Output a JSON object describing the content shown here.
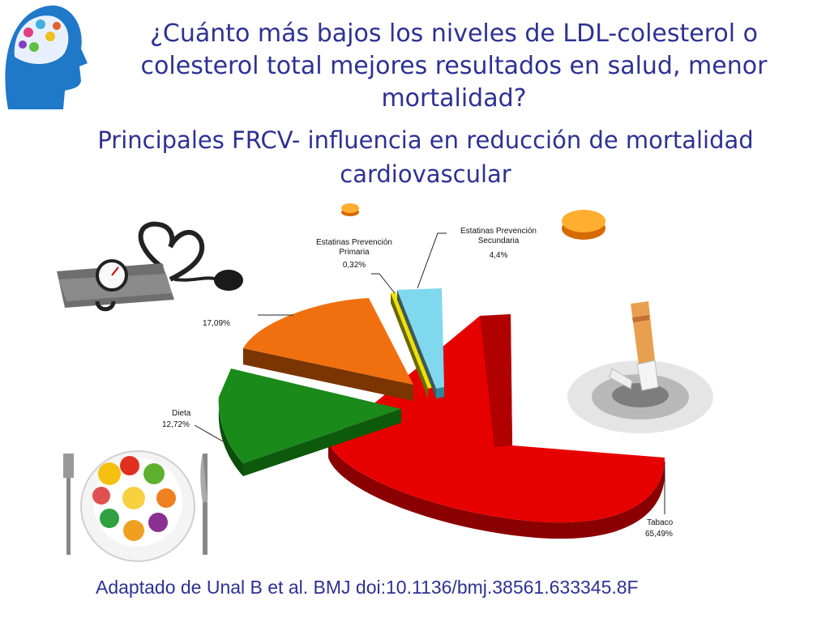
{
  "title": "¿Cuánto más bajos los niveles de LDL-colesterol o colesterol total mejores resultados en salud, menor mortalidad?",
  "subtitle": "Principales FRCV- influencia en reducción de mortalidad cardiovascular",
  "footer": "Adaptado de Unal B et al. BMJ doi:10.1136/bmj.38561.633345.8F",
  "colors": {
    "title": "#2e3192",
    "tabaco": "#e60000",
    "dieta": "#1a8a1a",
    "presion": "#f07010",
    "primaria": "#f0e000",
    "secundaria": "#7fd8ee"
  },
  "icons": [
    "brain-head-logo-icon",
    "blood-pressure-monitor-icon",
    "pill-icon",
    "cigarette-ashtray-icon",
    "fruit-plate-icon"
  ],
  "chart_data": {
    "type": "pie",
    "series": [
      {
        "label": "Tabaco",
        "value_label": "65,49%",
        "value": 65.49
      },
      {
        "label": "Dieta",
        "value_label": "12,72%",
        "value": 12.72
      },
      {
        "label": "",
        "value_label": "17,09%",
        "value": 17.09
      },
      {
        "label": "Estatinas Prevención Primaria",
        "value_label": "0,32%",
        "value": 0.32
      },
      {
        "label": "Estatinas Prevención Secundaria",
        "value_label": "4,4%",
        "value": 4.4
      }
    ]
  }
}
